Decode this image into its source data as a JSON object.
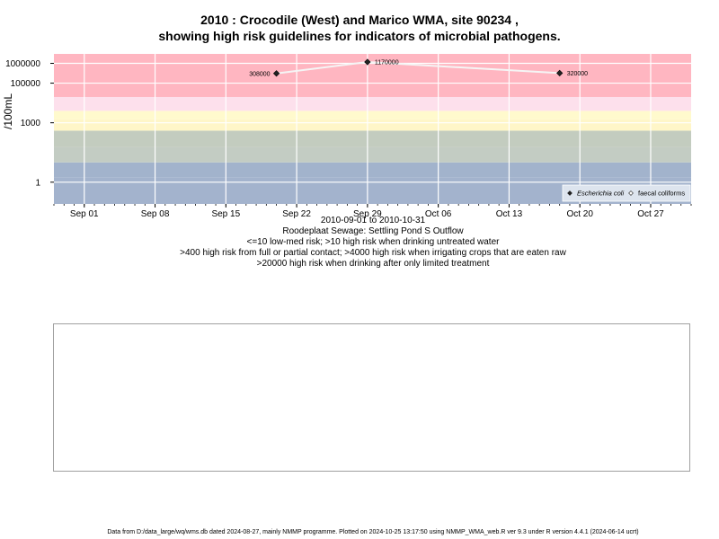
{
  "chart_data": {
    "type": "scatter",
    "title_line1": "2010 : Crocodile (West) and Marico WMA, site 90234 ,",
    "title_line2": "showing high risk guidelines for indicators of microbial pathogens.",
    "ylabel": "/100mL",
    "y_scale": "log10",
    "ylim": [
      0.08,
      3000000
    ],
    "xlim": [
      "2010-08-29",
      "2010-10-31"
    ],
    "x_ticks": [
      {
        "date": "2010-09-01",
        "label": "Sep 01"
      },
      {
        "date": "2010-09-08",
        "label": "Sep 08"
      },
      {
        "date": "2010-09-15",
        "label": "Sep 15"
      },
      {
        "date": "2010-09-22",
        "label": "Sep 22"
      },
      {
        "date": "2010-09-29",
        "label": "Sep 29"
      },
      {
        "date": "2010-10-06",
        "label": "Oct 06"
      },
      {
        "date": "2010-10-13",
        "label": "Oct 13"
      },
      {
        "date": "2010-10-20",
        "label": "Oct 20"
      },
      {
        "date": "2010-10-27",
        "label": "Oct 27"
      }
    ],
    "y_ticks": [
      {
        "value": 1,
        "label": "1"
      },
      {
        "value": 1000,
        "label": "1000"
      },
      {
        "value": 100000,
        "label": "100000"
      },
      {
        "value": 1000000,
        "label": "1000000"
      }
    ],
    "bands": [
      {
        "from": 0.08,
        "to": 1.8,
        "color": "#a3b3cd"
      },
      {
        "from": 1.8,
        "to": 10,
        "color": "#a2b3cc"
      },
      {
        "from": 10,
        "to": 60,
        "color": "#c3ccc3"
      },
      {
        "from": 60,
        "to": 400,
        "color": "#c3ccbf"
      },
      {
        "from": 400,
        "to": 1500,
        "color": "#fff6c8"
      },
      {
        "from": 1500,
        "to": 4000,
        "color": "#fffacd"
      },
      {
        "from": 4000,
        "to": 20000,
        "color": "#fde0ec"
      },
      {
        "from": 20000,
        "to": 3000000,
        "color": "#ffb6c1"
      }
    ],
    "series": [
      {
        "name": "Escherichia coli",
        "marker": "filled-diamond",
        "color": "#222222",
        "x": [
          "2010-09-20",
          "2010-09-29",
          "2010-10-18"
        ],
        "y": [
          308000,
          1170000,
          320000
        ],
        "labels": [
          "308000",
          "1170000",
          "320000"
        ],
        "label_side": [
          "left",
          "right",
          "right"
        ]
      }
    ],
    "legend": {
      "position": "bottom-right",
      "entries": [
        {
          "name": "Escherichia coli",
          "italic": true,
          "marker": "filled-diamond"
        },
        {
          "name": "faecal coliforms",
          "italic": false,
          "marker": "open-diamond"
        }
      ]
    },
    "line_color": "#f5f5f5"
  },
  "captions": [
    "2010-09-01 to 2010-10-31",
    "Roodeplaat Sewage: Settling Pond S Outflow",
    "<=10 low-med risk; >10 high risk when drinking untreated water",
    ">400 high risk from full or partial contact; >4000 high risk when irrigating crops that are eaten raw",
    ">20000 high risk when drinking after only limited treatment"
  ],
  "footer": "Data from D:/data_large/wq/wms.db dated 2024-08-27, mainly NMMP programme. Plotted on 2024-10-25 13:17:50 using NMMP_WMA_web.R ver 9.3 under R version 4.4.1 (2024-06-14 ucrt)"
}
